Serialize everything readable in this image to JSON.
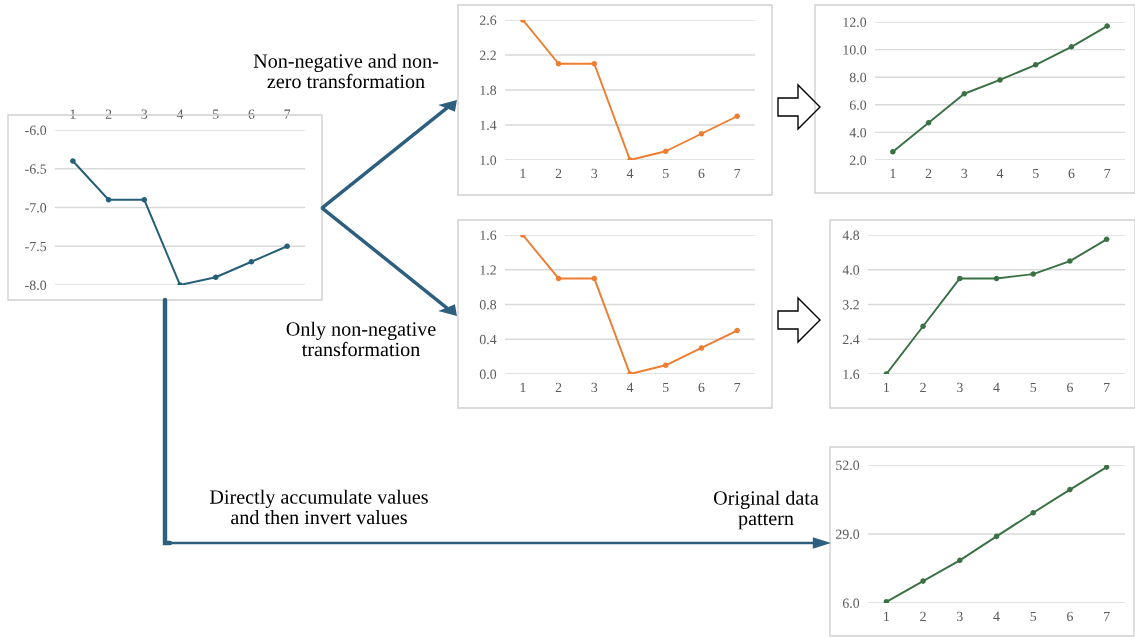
{
  "chart_data": [
    {
      "type": "line",
      "categories": [
        "1",
        "2",
        "3",
        "4",
        "5",
        "6",
        "7"
      ],
      "series": [
        {
          "color": "#255e79",
          "values": [
            -6.4,
            -6.9,
            -6.9,
            -8.0,
            -7.9,
            -7.7,
            -7.5
          ]
        }
      ],
      "ylim": [
        -8.0,
        -6.0
      ],
      "yticks": [
        {
          "value": -8.0,
          "label": "-8.0"
        },
        {
          "value": -7.5,
          "label": "-7.5"
        },
        {
          "value": -7.0,
          "label": "-7.0"
        },
        {
          "value": -6.5,
          "label": "-6.5"
        },
        {
          "value": -6.0,
          "label": "-6.0"
        }
      ],
      "grid": "y",
      "marker": "circle",
      "line_style": "solid"
    },
    {
      "type": "line",
      "categories": [
        "1",
        "2",
        "3",
        "4",
        "5",
        "6",
        "7"
      ],
      "series": [
        {
          "color": "#ed7d31",
          "values": [
            2.6,
            2.1,
            2.1,
            1.0,
            1.1,
            1.3,
            1.5
          ]
        }
      ],
      "ylim": [
        1.0,
        2.6
      ],
      "yticks": [
        {
          "value": 1.0,
          "label": "1.0"
        },
        {
          "value": 1.4,
          "label": "1.4"
        },
        {
          "value": 1.8,
          "label": "1.8"
        },
        {
          "value": 2.2,
          "label": "2.2"
        },
        {
          "value": 2.6,
          "label": "2.6"
        }
      ],
      "grid": "y",
      "marker": "circle",
      "line_style": "solid",
      "annotations": [
        "Non-negative and non-\nzero transformation"
      ]
    },
    {
      "type": "line",
      "categories": [
        "1",
        "2",
        "3",
        "4",
        "5",
        "6",
        "7"
      ],
      "series": [
        {
          "color": "#ed7d31",
          "values": [
            1.6,
            1.1,
            1.1,
            0.0,
            0.1,
            0.3,
            0.5
          ]
        }
      ],
      "ylim": [
        0.0,
        1.6
      ],
      "yticks": [
        {
          "value": 0.0,
          "label": "0.0"
        },
        {
          "value": 0.4,
          "label": "0.4"
        },
        {
          "value": 0.8,
          "label": "0.8"
        },
        {
          "value": 1.2,
          "label": "1.2"
        },
        {
          "value": 1.6,
          "label": "1.6"
        }
      ],
      "grid": "y",
      "marker": "circle",
      "line_style": "solid",
      "annotations": [
        "Only non-negative\ntransformation"
      ]
    },
    {
      "type": "line",
      "categories": [
        "1",
        "2",
        "3",
        "4",
        "5",
        "6",
        "7"
      ],
      "series": [
        {
          "color": "#3a7044",
          "values": [
            2.6,
            4.7,
            6.8,
            7.8,
            8.9,
            10.2,
            11.7
          ]
        }
      ],
      "ylim": [
        2.0,
        12.0
      ],
      "yticks": [
        {
          "value": 2.0,
          "label": "2.0"
        },
        {
          "value": 4.0,
          "label": "4.0"
        },
        {
          "value": 6.0,
          "label": "6.0"
        },
        {
          "value": 8.0,
          "label": "8.0"
        },
        {
          "value": 10.0,
          "label": "10.0"
        },
        {
          "value": 12.0,
          "label": "12.0"
        }
      ],
      "grid": "y",
      "marker": "circle",
      "line_style": "solid"
    },
    {
      "type": "line",
      "categories": [
        "1",
        "2",
        "3",
        "4",
        "5",
        "6",
        "7"
      ],
      "series": [
        {
          "color": "#3a7044",
          "values": [
            1.6,
            2.7,
            3.8,
            3.8,
            3.9,
            4.2,
            4.7
          ]
        }
      ],
      "ylim": [
        1.6,
        4.8
      ],
      "yticks": [
        {
          "value": 1.6,
          "label": "1.6"
        },
        {
          "value": 2.4,
          "label": "2.4"
        },
        {
          "value": 3.2,
          "label": "3.2"
        },
        {
          "value": 4.0,
          "label": "4.0"
        },
        {
          "value": 4.8,
          "label": "4.8"
        }
      ],
      "grid": "y",
      "marker": "circle",
      "line_style": "solid"
    },
    {
      "type": "line",
      "categories": [
        "1",
        "2",
        "3",
        "4",
        "5",
        "6",
        "7"
      ],
      "series": [
        {
          "color": "#3a7044",
          "values": [
            6.4,
            13.3,
            20.2,
            28.2,
            36.1,
            43.8,
            51.3
          ]
        }
      ],
      "ylim": [
        6.0,
        52.0
      ],
      "yticks": [
        {
          "value": 6.0,
          "label": "6.0"
        },
        {
          "value": 29.0,
          "label": "29.0"
        },
        {
          "value": 52.0,
          "label": "52.0"
        }
      ],
      "grid": "y",
      "marker": "circle",
      "line_style": "solid",
      "annotations": [
        "Directly accumulate values\nand then invert values",
        "Original data\npattern"
      ]
    }
  ]
}
